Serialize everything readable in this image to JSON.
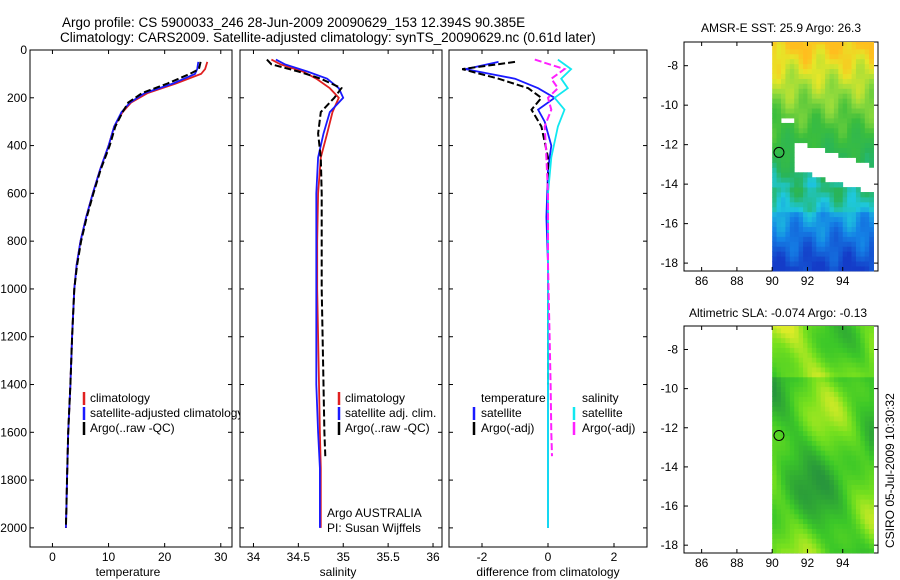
{
  "title": {
    "line1": "Argo profile: CS 5900033_246 28-Jun-2009 20090629_153 12.394S 90.385E",
    "line2": "Climatology: CARS2009. Satellite-adjusted climatology: synTS_20090629.nc (0.61d later)"
  },
  "side_label": "CSIRO 05-Jul-2009 10:30:32",
  "colors": {
    "climatology": "#e02020",
    "satellite": "#1a1aff",
    "argo": "#000000",
    "salinity_sat": "#10e8f0",
    "salinity_argo": "#ff20ff"
  },
  "chart_data": [
    {
      "id": "temperature",
      "type": "line",
      "xlabel": "temperature",
      "ylabel": "",
      "xlim": [
        -4,
        32
      ],
      "ylim": [
        2080,
        0
      ],
      "xticks": [
        0,
        10,
        20,
        30
      ],
      "yticks": [
        0,
        200,
        400,
        600,
        800,
        1000,
        1200,
        1400,
        1600,
        1800,
        2000
      ],
      "legend": [
        "climatology",
        "satellite-adjusted climatology",
        "Argo(..raw -QC)"
      ],
      "series": [
        {
          "name": "climatology",
          "color": "climatology",
          "x": [
            27.6,
            27.2,
            26.5,
            22,
            17,
            14,
            12.5,
            11,
            10,
            8.5,
            7.2,
            6,
            5,
            4.3,
            3.9,
            3.5,
            3.2,
            3.0,
            2.8,
            2.6,
            2.5,
            2.4
          ],
          "y": [
            50,
            80,
            100,
            140,
            180,
            220,
            260,
            320,
            400,
            500,
            600,
            700,
            800,
            900,
            1000,
            1200,
            1400,
            1500,
            1600,
            1800,
            1900,
            2000
          ]
        },
        {
          "name": "satellite",
          "color": "satellite",
          "x": [
            26.0,
            25.8,
            25.4,
            21.5,
            16.5,
            13.8,
            12.3,
            11,
            10,
            8.5,
            7.2,
            6,
            5,
            4.3,
            3.9,
            3.5,
            3.2,
            3.0,
            2.8,
            2.6,
            2.5,
            2.4
          ],
          "y": [
            50,
            80,
            100,
            140,
            180,
            220,
            260,
            320,
            400,
            500,
            600,
            700,
            800,
            900,
            1000,
            1200,
            1400,
            1500,
            1600,
            1800,
            1900,
            2000
          ]
        },
        {
          "name": "Argo",
          "color": "argo",
          "dash": true,
          "x": [
            26.4,
            26.1,
            24.5,
            20.5,
            16,
            13.5,
            12.5,
            11.2,
            10.2,
            8.6,
            7.3,
            6.1,
            5.1,
            4.4,
            3.9,
            3.5,
            3.2,
            3.0,
            2.8,
            2.6,
            2.5,
            2.4
          ],
          "y": [
            50,
            80,
            100,
            140,
            180,
            220,
            260,
            320,
            400,
            500,
            600,
            700,
            800,
            900,
            1000,
            1200,
            1400,
            1500,
            1600,
            1800,
            1900,
            2000
          ]
        }
      ]
    },
    {
      "id": "salinity",
      "type": "line",
      "xlabel": "salinity",
      "xlim": [
        33.85,
        36.1
      ],
      "ylim": [
        2080,
        0
      ],
      "xticks": [
        34,
        34.5,
        35,
        35.5,
        36
      ],
      "legend": [
        "climatology",
        "satellite adj. clim.",
        "Argo(..raw -QC)"
      ],
      "annotations": [
        "Argo AUSTRALIA",
        "PI: Susan Wijffels"
      ],
      "series": [
        {
          "name": "climatology",
          "color": "climatology",
          "x": [
            34.2,
            34.3,
            34.55,
            34.7,
            34.85,
            34.95,
            34.88,
            34.82,
            34.75,
            34.72,
            34.71,
            34.71,
            34.72,
            34.73,
            34.74,
            34.75,
            34.75,
            34.75,
            34.75
          ],
          "y": [
            40,
            60,
            90,
            120,
            160,
            200,
            260,
            350,
            450,
            600,
            800,
            1000,
            1200,
            1400,
            1600,
            1750,
            1850,
            1950,
            2000
          ]
        },
        {
          "name": "satellite",
          "color": "satellite",
          "x": [
            34.25,
            34.35,
            34.6,
            34.82,
            34.95,
            35.0,
            34.85,
            34.78,
            34.72,
            34.7,
            34.7,
            34.7,
            34.7,
            34.7,
            34.72,
            34.74,
            34.74,
            34.74,
            34.74
          ],
          "y": [
            40,
            60,
            90,
            120,
            160,
            200,
            260,
            350,
            450,
            600,
            800,
            1000,
            1200,
            1400,
            1600,
            1750,
            1850,
            1950,
            2000
          ]
        },
        {
          "name": "Argo",
          "color": "argo",
          "dash": true,
          "x": [
            34.15,
            34.2,
            34.5,
            34.75,
            34.98,
            34.9,
            34.75,
            34.72,
            34.75,
            34.76,
            34.76,
            34.76,
            34.77,
            34.78,
            34.79,
            34.8
          ],
          "y": [
            40,
            60,
            90,
            120,
            160,
            200,
            260,
            350,
            450,
            600,
            800,
            1000,
            1200,
            1400,
            1600,
            1700
          ]
        }
      ]
    },
    {
      "id": "difference",
      "type": "line",
      "xlabel": "difference from climatology",
      "xlim": [
        -3,
        3
      ],
      "ylim": [
        2080,
        0
      ],
      "xticks": [
        -2,
        0,
        2
      ],
      "legend_headers": [
        "temperature",
        "salinity"
      ],
      "legend": [
        "satellite",
        "Argo(-adj)",
        "satellite",
        "Argo(-adj)"
      ],
      "series": [
        {
          "name": "temperature satellite",
          "color": "satellite",
          "x": [
            -1.5,
            -2.5,
            -1.0,
            -0.3,
            0.2,
            -0.3,
            -0.1,
            0.1,
            0.0,
            -0.05,
            0.0,
            0.0,
            0.0,
            0.0,
            0.0,
            0.0
          ],
          "y": [
            50,
            80,
            120,
            160,
            200,
            250,
            300,
            400,
            500,
            700,
            900,
            1200,
            1500,
            1700,
            1900,
            2000
          ]
        },
        {
          "name": "temperature Argo",
          "color": "argo",
          "dash": true,
          "x": [
            -1.0,
            -2.6,
            -1.5,
            -0.6,
            -0.2,
            -0.5,
            -0.2,
            0.0,
            0.0,
            0.0,
            0.0,
            0.0,
            0.0
          ],
          "y": [
            50,
            80,
            120,
            160,
            200,
            250,
            320,
            450,
            600,
            800,
            1000,
            1200,
            1400
          ]
        },
        {
          "name": "salinity satellite",
          "color": "salinity_sat",
          "x": [
            0.3,
            0.7,
            0.4,
            0.6,
            0.2,
            0.5,
            0.3,
            0.1,
            0.0,
            0.0,
            0.0,
            0.0,
            0.0,
            0.0,
            0.0
          ],
          "y": [
            40,
            80,
            120,
            160,
            200,
            250,
            320,
            450,
            600,
            800,
            1000,
            1300,
            1600,
            1800,
            2000
          ]
        },
        {
          "name": "salinity Argo",
          "color": "salinity_argo",
          "dash": true,
          "x": [
            -0.4,
            0.5,
            0.1,
            0.3,
            0.0,
            0.1,
            -0.1,
            -0.05,
            0.0,
            0.0,
            0.05,
            0.08,
            0.1,
            0.12
          ],
          "y": [
            40,
            80,
            120,
            160,
            200,
            250,
            320,
            450,
            600,
            900,
            1200,
            1400,
            1600,
            1700
          ]
        }
      ]
    },
    {
      "id": "sst_map",
      "type": "heatmap",
      "title": "AMSR-E SST: 25.9  Argo: 26.3",
      "xlim": [
        85,
        96
      ],
      "ylim": [
        -18.4,
        -6.8
      ],
      "xticks": [
        86,
        88,
        90,
        92,
        94
      ],
      "yticks": [
        -8,
        -10,
        -12,
        -14,
        -16,
        -18
      ],
      "marker": {
        "lon": 90.385,
        "lat": -12.394
      }
    },
    {
      "id": "sla_map",
      "type": "heatmap",
      "title": "Altimetric SLA: -0.074  Argo: -0.13",
      "xlim": [
        85,
        96
      ],
      "ylim": [
        -18.4,
        -6.8
      ],
      "xticks": [
        86,
        88,
        90,
        92,
        94
      ],
      "yticks": [
        -8,
        -10,
        -12,
        -14,
        -16,
        -18
      ],
      "marker": {
        "lon": 90.385,
        "lat": -12.394
      }
    }
  ]
}
